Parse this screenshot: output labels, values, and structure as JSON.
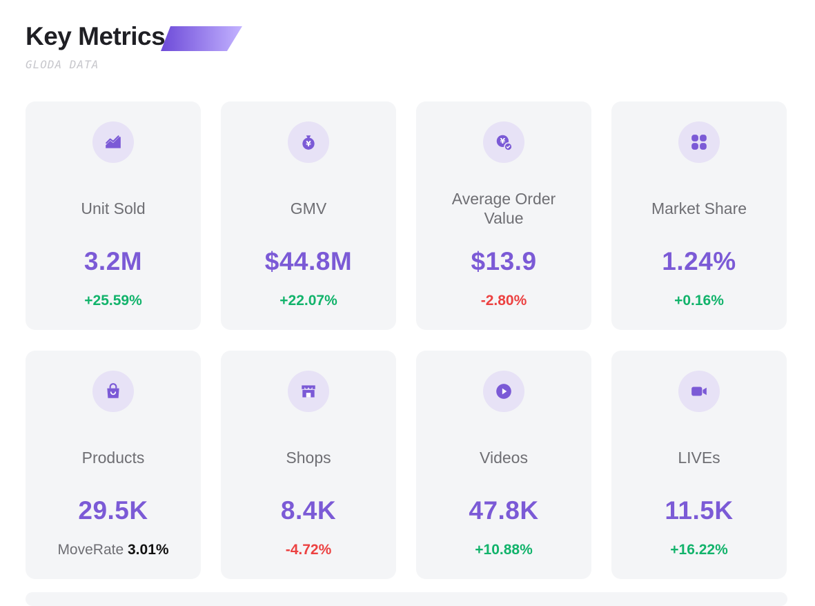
{
  "header": {
    "title": "Key Metrics",
    "subtitle": "GLODA DATA"
  },
  "colors": {
    "accent": "#7b5ad6",
    "positive": "#12b36b",
    "negative": "#ec4141",
    "card_bg": "#f4f5f7",
    "icon_bg": "#e7e2f6"
  },
  "metrics": [
    {
      "icon": "trend-chart-icon",
      "label": "Unit Sold",
      "value": "3.2M",
      "change": "+25.59%",
      "direction": "up"
    },
    {
      "icon": "money-bag-icon",
      "label": "GMV",
      "value": "$44.8M",
      "change": "+22.07%",
      "direction": "up"
    },
    {
      "icon": "yen-coin-check-icon",
      "label": "Average Order Value",
      "value": "$13.9",
      "change": "-2.80%",
      "direction": "down"
    },
    {
      "icon": "grid-apps-icon",
      "label": "Market Share",
      "value": "1.24%",
      "change": "+0.16%",
      "direction": "up"
    },
    {
      "icon": "shopping-bag-icon",
      "label": "Products",
      "value": "29.5K",
      "moverate_label": "MoveRate",
      "moverate_value": "3.01%"
    },
    {
      "icon": "storefront-icon",
      "label": "Shops",
      "value": "8.4K",
      "change": "-4.72%",
      "direction": "down"
    },
    {
      "icon": "play-icon",
      "label": "Videos",
      "value": "47.8K",
      "change": "+10.88%",
      "direction": "up"
    },
    {
      "icon": "video-camera-icon",
      "label": "LIVEs",
      "value": "11.5K",
      "change": "+16.22%",
      "direction": "up"
    }
  ]
}
